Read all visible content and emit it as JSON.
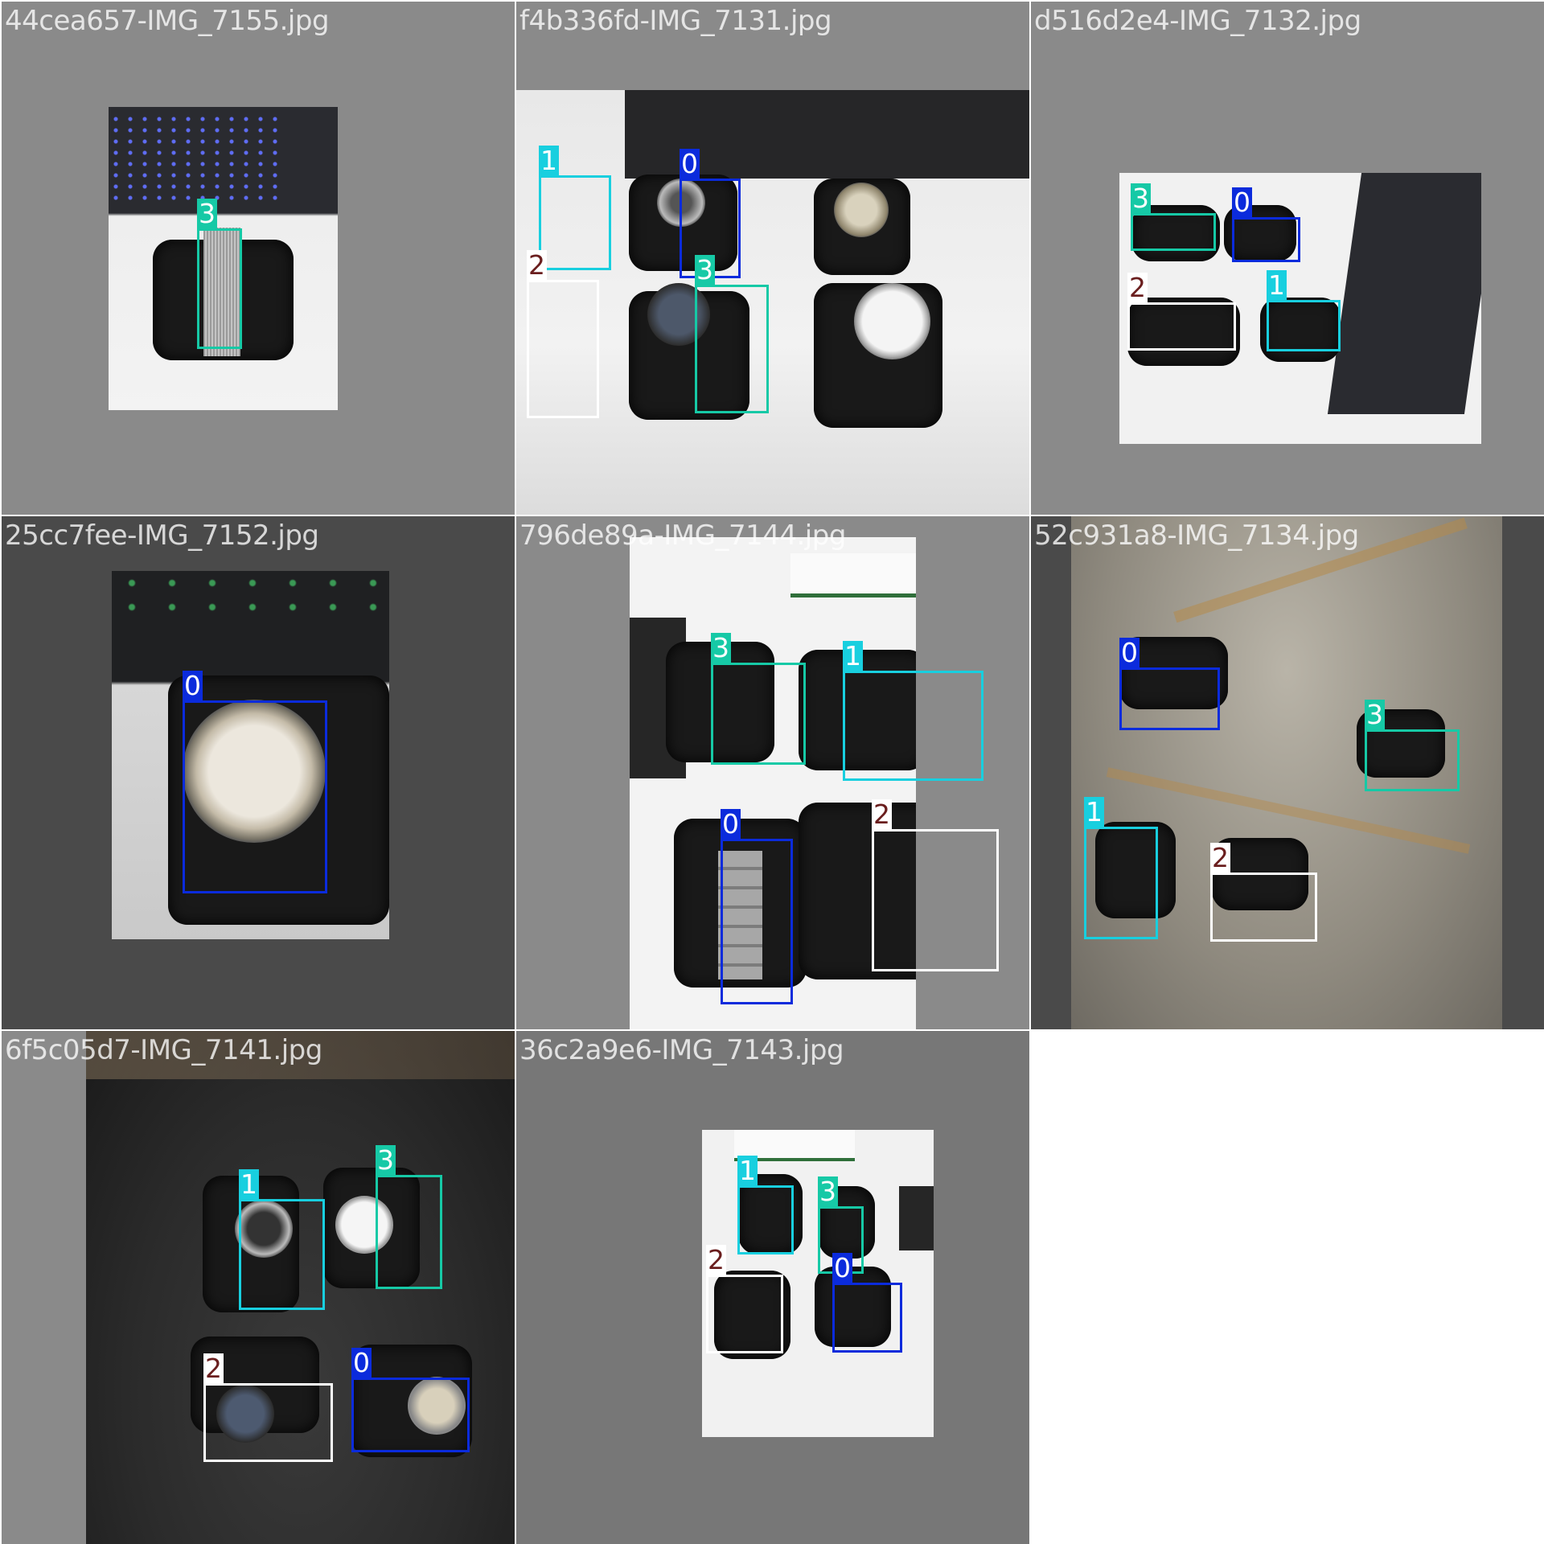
{
  "colors": {
    "class_0": "#0b2bdc",
    "class_1": "#18cfdf",
    "class_2": "#ffffff",
    "class_3": "#16c9a6",
    "class_2_label_bg": "#ffffff",
    "class_2_label_text": "#6a1e1e",
    "letterbox_gray": "#8a8a8a"
  },
  "tiles": [
    {
      "filename": "44cea657-IMG_7155.jpg",
      "detections": [
        {
          "cls": "3"
        }
      ]
    },
    {
      "filename": "f4b336fd-IMG_7131.jpg",
      "detections": [
        {
          "cls": "1"
        },
        {
          "cls": "0"
        },
        {
          "cls": "2"
        },
        {
          "cls": "3"
        }
      ]
    },
    {
      "filename": "d516d2e4-IMG_7132.jpg",
      "detections": [
        {
          "cls": "3"
        },
        {
          "cls": "0"
        },
        {
          "cls": "2"
        },
        {
          "cls": "1"
        }
      ]
    },
    {
      "filename": "25cc7fee-IMG_7152.jpg",
      "detections": [
        {
          "cls": "0"
        }
      ]
    },
    {
      "filename": "796de89a-IMG_7144.jpg",
      "detections": [
        {
          "cls": "3"
        },
        {
          "cls": "1"
        },
        {
          "cls": "0"
        },
        {
          "cls": "2"
        }
      ]
    },
    {
      "filename": "52c931a8-IMG_7134.jpg",
      "detections": [
        {
          "cls": "0"
        },
        {
          "cls": "3"
        },
        {
          "cls": "1"
        },
        {
          "cls": "2"
        }
      ]
    },
    {
      "filename": "6f5c05d7-IMG_7141.jpg",
      "detections": [
        {
          "cls": "1"
        },
        {
          "cls": "3"
        },
        {
          "cls": "2"
        },
        {
          "cls": "0"
        }
      ]
    },
    {
      "filename": "36c2a9e6-IMG_7143.jpg",
      "detections": [
        {
          "cls": "1"
        },
        {
          "cls": "3"
        },
        {
          "cls": "2"
        },
        {
          "cls": "0"
        }
      ]
    }
  ]
}
